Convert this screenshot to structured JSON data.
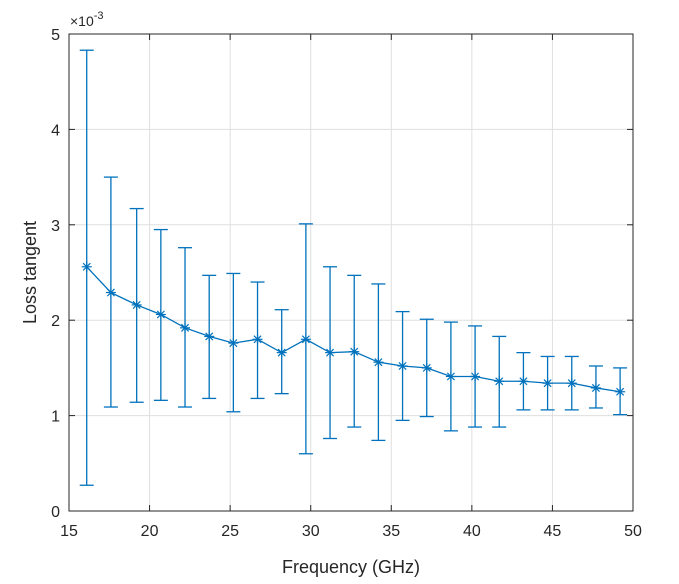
{
  "chart_data": {
    "type": "line",
    "title": "",
    "xlabel": "Frequency (GHz)",
    "ylabel": "Loss tangent",
    "y_exponent_label": "×10",
    "y_exponent_power": "-3",
    "xlim": [
      15,
      50
    ],
    "ylim": [
      0,
      5
    ],
    "x_ticks": [
      15,
      20,
      25,
      30,
      35,
      40,
      45,
      50
    ],
    "y_ticks": [
      0,
      1,
      2,
      3,
      4,
      5
    ],
    "grid": true,
    "marker": "asterisk",
    "error_bars": true,
    "series": [
      {
        "color": "#0072BD",
        "points": [
          {
            "x": 16.1,
            "y": 2.56,
            "lower": 0.27,
            "upper": 4.83
          },
          {
            "x": 17.6,
            "y": 2.29,
            "lower": 1.09,
            "upper": 3.5
          },
          {
            "x": 19.2,
            "y": 2.16,
            "lower": 1.14,
            "upper": 3.17
          },
          {
            "x": 20.7,
            "y": 2.06,
            "lower": 1.16,
            "upper": 2.95
          },
          {
            "x": 22.2,
            "y": 1.92,
            "lower": 1.09,
            "upper": 2.76
          },
          {
            "x": 23.7,
            "y": 1.83,
            "lower": 1.18,
            "upper": 2.47
          },
          {
            "x": 25.2,
            "y": 1.76,
            "lower": 1.04,
            "upper": 2.49
          },
          {
            "x": 26.7,
            "y": 1.8,
            "lower": 1.18,
            "upper": 2.4
          },
          {
            "x": 28.2,
            "y": 1.66,
            "lower": 1.23,
            "upper": 2.11
          },
          {
            "x": 29.7,
            "y": 1.8,
            "lower": 0.6,
            "upper": 3.01
          },
          {
            "x": 31.2,
            "y": 1.66,
            "lower": 0.76,
            "upper": 2.56
          },
          {
            "x": 32.7,
            "y": 1.67,
            "lower": 0.88,
            "upper": 2.47
          },
          {
            "x": 34.2,
            "y": 1.56,
            "lower": 0.74,
            "upper": 2.38
          },
          {
            "x": 35.7,
            "y": 1.52,
            "lower": 0.95,
            "upper": 2.09
          },
          {
            "x": 37.2,
            "y": 1.5,
            "lower": 0.99,
            "upper": 2.01
          },
          {
            "x": 38.7,
            "y": 1.41,
            "lower": 0.84,
            "upper": 1.98
          },
          {
            "x": 40.2,
            "y": 1.41,
            "lower": 0.88,
            "upper": 1.94
          },
          {
            "x": 41.7,
            "y": 1.36,
            "lower": 0.88,
            "upper": 1.83
          },
          {
            "x": 43.2,
            "y": 1.36,
            "lower": 1.06,
            "upper": 1.66
          },
          {
            "x": 44.7,
            "y": 1.34,
            "lower": 1.06,
            "upper": 1.62
          },
          {
            "x": 46.2,
            "y": 1.34,
            "lower": 1.06,
            "upper": 1.62
          },
          {
            "x": 47.7,
            "y": 1.29,
            "lower": 1.08,
            "upper": 1.52
          },
          {
            "x": 49.2,
            "y": 1.25,
            "lower": 1.01,
            "upper": 1.5
          }
        ]
      }
    ]
  }
}
